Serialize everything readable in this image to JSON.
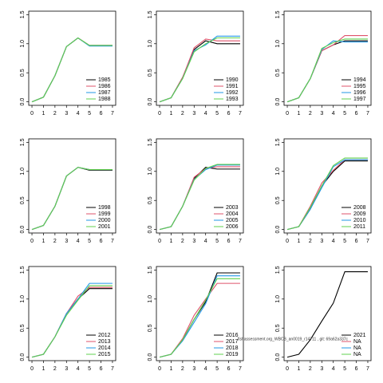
{
  "chart_data": [
    {
      "type": "line",
      "x": [
        0,
        1,
        2,
        3,
        4,
        5,
        6,
        7
      ],
      "xlim": [
        -0.28,
        7.28
      ],
      "ylim": [
        -0.06,
        1.56
      ],
      "xticks": [
        0,
        1,
        2,
        3,
        4,
        5,
        6,
        7
      ],
      "yticks": [
        {
          "value": 0,
          "label": "0.0"
        },
        0.5,
        {
          "value": 1,
          "label": "1.0"
        },
        1.5
      ],
      "series": [
        {
          "name": "1985",
          "color": "#000000",
          "values": [
            0,
            0.08,
            0.45,
            0.95,
            1.1,
            0.97,
            0.97,
            0.97
          ]
        },
        {
          "name": "1986",
          "color": "#df536b",
          "values": [
            0,
            0.08,
            0.45,
            0.95,
            1.1,
            0.97,
            0.97,
            0.97
          ]
        },
        {
          "name": "1987",
          "color": "#2297e6",
          "values": [
            0,
            0.08,
            0.45,
            0.95,
            1.1,
            0.96,
            0.96,
            0.96
          ]
        },
        {
          "name": "1988",
          "color": "#61d04f",
          "values": [
            0,
            0.08,
            0.45,
            0.95,
            1.1,
            0.97,
            0.97,
            0.97
          ]
        }
      ]
    },
    {
      "type": "line",
      "x": [
        0,
        1,
        2,
        3,
        4,
        5,
        6,
        7
      ],
      "xlim": [
        -0.28,
        7.28
      ],
      "ylim": [
        -0.06,
        1.56
      ],
      "xticks": [
        0,
        1,
        2,
        3,
        4,
        5,
        6,
        7
      ],
      "yticks": [
        {
          "value": 0,
          "label": "0.0"
        },
        0.5,
        {
          "value": 1,
          "label": "1.0"
        },
        1.5
      ],
      "series": [
        {
          "name": "1990",
          "color": "#000000",
          "values": [
            0,
            0.07,
            0.42,
            0.9,
            1.05,
            1.0,
            1.0,
            1.0
          ]
        },
        {
          "name": "1991",
          "color": "#df536b",
          "values": [
            0,
            0.07,
            0.42,
            0.93,
            1.08,
            1.05,
            1.05,
            1.05
          ]
        },
        {
          "name": "1992",
          "color": "#2297e6",
          "values": [
            0,
            0.07,
            0.4,
            0.88,
            0.98,
            1.13,
            1.13,
            1.13
          ]
        },
        {
          "name": "1993",
          "color": "#61d04f",
          "values": [
            0,
            0.07,
            0.4,
            0.86,
            1.0,
            1.1,
            1.1,
            1.1
          ]
        }
      ]
    },
    {
      "type": "line",
      "x": [
        0,
        1,
        2,
        3,
        4,
        5,
        6,
        7
      ],
      "xlim": [
        -0.28,
        7.28
      ],
      "ylim": [
        -0.06,
        1.56
      ],
      "xticks": [
        0,
        1,
        2,
        3,
        4,
        5,
        6,
        7
      ],
      "yticks": [
        {
          "value": 0,
          "label": "0.0"
        },
        0.5,
        {
          "value": 1,
          "label": "1.0"
        },
        1.5
      ],
      "series": [
        {
          "name": "1994",
          "color": "#000000",
          "values": [
            0,
            0.07,
            0.4,
            0.88,
            0.98,
            1.05,
            1.05,
            1.05
          ]
        },
        {
          "name": "1995",
          "color": "#df536b",
          "values": [
            0,
            0.07,
            0.4,
            0.88,
            0.98,
            1.14,
            1.14,
            1.14
          ]
        },
        {
          "name": "1996",
          "color": "#2297e6",
          "values": [
            0,
            0.07,
            0.4,
            0.9,
            1.05,
            1.03,
            1.03,
            1.03
          ]
        },
        {
          "name": "1997",
          "color": "#61d04f",
          "values": [
            0,
            0.07,
            0.4,
            0.92,
            1.02,
            1.08,
            1.08,
            1.08
          ]
        }
      ]
    },
    {
      "type": "line",
      "x": [
        0,
        1,
        2,
        3,
        4,
        5,
        6,
        7
      ],
      "xlim": [
        -0.28,
        7.28
      ],
      "ylim": [
        -0.06,
        1.56
      ],
      "xticks": [
        0,
        1,
        2,
        3,
        4,
        5,
        6,
        7
      ],
      "yticks": [
        {
          "value": 0,
          "label": "0.0"
        },
        0.5,
        {
          "value": 1,
          "label": "1.0"
        },
        1.5
      ],
      "series": [
        {
          "name": "1998",
          "color": "#000000",
          "values": [
            0,
            0.07,
            0.4,
            0.92,
            1.07,
            1.02,
            1.02,
            1.02
          ]
        },
        {
          "name": "1999",
          "color": "#df536b",
          "values": [
            0,
            0.07,
            0.4,
            0.92,
            1.07,
            1.03,
            1.03,
            1.03
          ]
        },
        {
          "name": "2000",
          "color": "#2297e6",
          "values": [
            0,
            0.07,
            0.4,
            0.92,
            1.07,
            1.03,
            1.03,
            1.03
          ]
        },
        {
          "name": "2001",
          "color": "#61d04f",
          "values": [
            0,
            0.07,
            0.4,
            0.92,
            1.07,
            1.03,
            1.03,
            1.03
          ]
        }
      ]
    },
    {
      "type": "line",
      "x": [
        0,
        1,
        2,
        3,
        4,
        5,
        6,
        7
      ],
      "xlim": [
        -0.28,
        7.28
      ],
      "ylim": [
        -0.06,
        1.56
      ],
      "xticks": [
        0,
        1,
        2,
        3,
        4,
        5,
        6,
        7
      ],
      "yticks": [
        {
          "value": 0,
          "label": "0.0"
        },
        0.5,
        {
          "value": 1,
          "label": "1.0"
        },
        1.5
      ],
      "series": [
        {
          "name": "2003",
          "color": "#000000",
          "values": [
            0,
            0.05,
            0.4,
            0.88,
            1.07,
            1.04,
            1.04,
            1.04
          ]
        },
        {
          "name": "2004",
          "color": "#df536b",
          "values": [
            0,
            0.05,
            0.4,
            0.9,
            1.05,
            1.08,
            1.08,
            1.08
          ]
        },
        {
          "name": "2005",
          "color": "#2297e6",
          "values": [
            0,
            0.05,
            0.4,
            0.86,
            1.03,
            1.11,
            1.11,
            1.11
          ]
        },
        {
          "name": "2006",
          "color": "#61d04f",
          "values": [
            0,
            0.05,
            0.4,
            0.85,
            1.05,
            1.12,
            1.12,
            1.12
          ]
        }
      ]
    },
    {
      "type": "line",
      "x": [
        0,
        1,
        2,
        3,
        4,
        5,
        6,
        7
      ],
      "xlim": [
        -0.28,
        7.28
      ],
      "ylim": [
        -0.06,
        1.56
      ],
      "xticks": [
        0,
        1,
        2,
        3,
        4,
        5,
        6,
        7
      ],
      "yticks": [
        {
          "value": 0,
          "label": "0.0"
        },
        0.5,
        {
          "value": 1,
          "label": "1.0"
        },
        1.5
      ],
      "series": [
        {
          "name": "2008",
          "color": "#000000",
          "values": [
            0,
            0.05,
            0.35,
            0.75,
            1.0,
            1.18,
            1.18,
            1.18
          ]
        },
        {
          "name": "2009",
          "color": "#df536b",
          "values": [
            0,
            0.05,
            0.4,
            0.8,
            1.02,
            1.2,
            1.2,
            1.2
          ]
        },
        {
          "name": "2010",
          "color": "#2297e6",
          "values": [
            0,
            0.05,
            0.35,
            0.72,
            1.08,
            1.2,
            1.2,
            1.2
          ]
        },
        {
          "name": "2011",
          "color": "#61d04f",
          "values": [
            0,
            0.05,
            0.38,
            0.75,
            1.1,
            1.23,
            1.23,
            1.23
          ]
        }
      ]
    },
    {
      "type": "line",
      "x": [
        0,
        1,
        2,
        3,
        4,
        5,
        6,
        7
      ],
      "xlim": [
        -0.28,
        7.28
      ],
      "ylim": [
        -0.06,
        1.56
      ],
      "xticks": [
        0,
        1,
        2,
        3,
        4,
        5,
        6,
        7
      ],
      "yticks": [
        {
          "value": 0,
          "label": "0.0"
        },
        0.5,
        {
          "value": 1,
          "label": "1.0"
        },
        1.5
      ],
      "series": [
        {
          "name": "2012",
          "color": "#000000",
          "values": [
            0,
            0.05,
            0.35,
            0.75,
            1.0,
            1.18,
            1.18,
            1.18
          ]
        },
        {
          "name": "2013",
          "color": "#df536b",
          "values": [
            0,
            0.05,
            0.35,
            0.75,
            1.05,
            1.2,
            1.2,
            1.2
          ]
        },
        {
          "name": "2014",
          "color": "#2297e6",
          "values": [
            0,
            0.05,
            0.35,
            0.75,
            1.0,
            1.27,
            1.27,
            1.27
          ]
        },
        {
          "name": "2015",
          "color": "#61d04f",
          "values": [
            0,
            0.05,
            0.35,
            0.72,
            0.98,
            1.23,
            1.23,
            1.23
          ]
        }
      ]
    },
    {
      "type": "line",
      "x": [
        0,
        1,
        2,
        3,
        4,
        5,
        6,
        7
      ],
      "xlim": [
        -0.28,
        7.28
      ],
      "ylim": [
        -0.06,
        1.56
      ],
      "xticks": [
        0,
        1,
        2,
        3,
        4,
        5,
        6,
        7
      ],
      "yticks": [
        {
          "value": 0,
          "label": "0.0"
        },
        0.5,
        {
          "value": 1,
          "label": "1.0"
        },
        1.5
      ],
      "series": [
        {
          "name": "2016",
          "color": "#000000",
          "values": [
            0,
            0.05,
            0.3,
            0.65,
            0.95,
            1.45,
            1.45,
            1.45
          ]
        },
        {
          "name": "2017",
          "color": "#df536b",
          "values": [
            0,
            0.05,
            0.32,
            0.72,
            1.0,
            1.27,
            1.27,
            1.27
          ]
        },
        {
          "name": "2018",
          "color": "#2297e6",
          "values": [
            0,
            0.05,
            0.28,
            0.6,
            0.92,
            1.4,
            1.4,
            1.4
          ]
        },
        {
          "name": "2019",
          "color": "#61d04f",
          "values": [
            0,
            0.05,
            0.3,
            0.65,
            0.98,
            1.35,
            1.35,
            1.35
          ]
        }
      ]
    },
    {
      "type": "line",
      "x": [
        0,
        1,
        2,
        3,
        4,
        5,
        6,
        7
      ],
      "xlim": [
        -0.28,
        7.28
      ],
      "ylim": [
        -0.06,
        1.56
      ],
      "xticks": [
        0,
        1,
        2,
        3,
        4,
        5,
        6,
        7
      ],
      "yticks": [
        {
          "value": 0,
          "label": "0.0"
        },
        0.5,
        {
          "value": 1,
          "label": "1.0"
        },
        1.5
      ],
      "series": [
        {
          "name": "2021",
          "color": "#000000",
          "values": [
            0,
            0.05,
            0.3,
            0.62,
            0.93,
            1.47,
            1.47,
            1.47
          ]
        },
        {
          "name": "NA",
          "color": "#df536b",
          "values": [
            null,
            null,
            null,
            null,
            null,
            null,
            null,
            null
          ]
        },
        {
          "name": "NA",
          "color": "#2297e6",
          "values": [
            null,
            null,
            null,
            null,
            null,
            null,
            null,
            null
          ]
        },
        {
          "name": "NA",
          "color": "#61d04f",
          "values": [
            null,
            null,
            null,
            null,
            null,
            null,
            null,
            null
          ]
        }
      ]
    }
  ],
  "watermark": "fishassessment.org_WBCB_an0019_r14711 , git: 69a62a337c"
}
